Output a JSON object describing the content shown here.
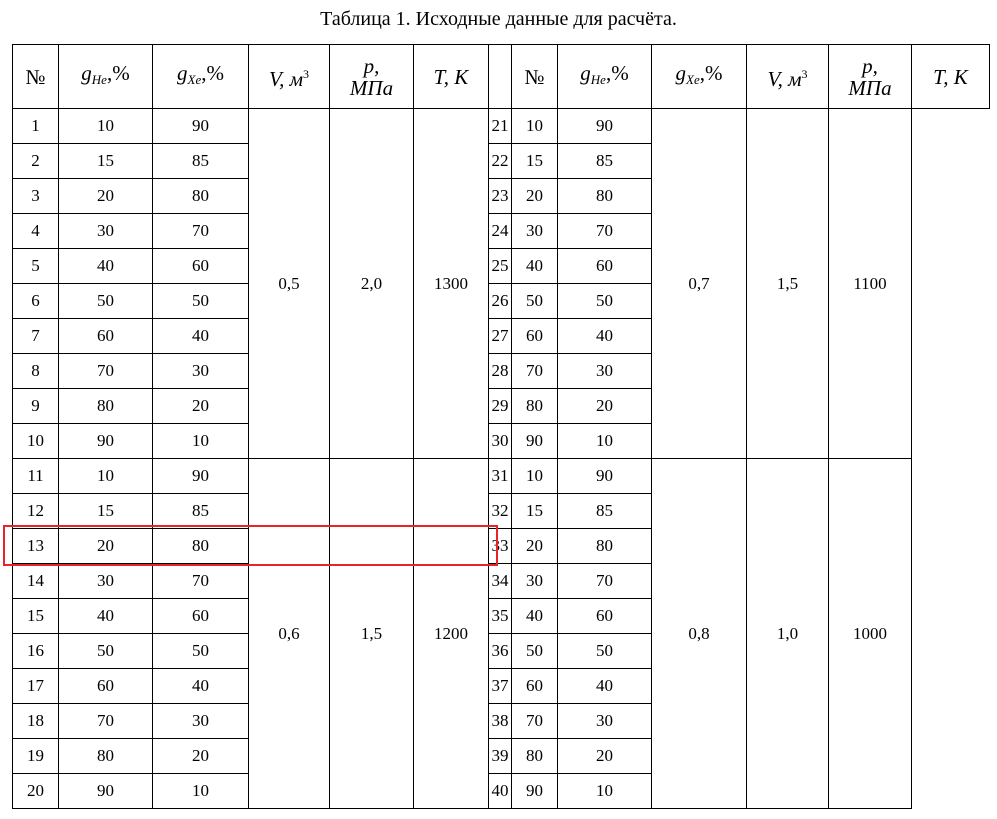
{
  "caption": "Таблица 1. Исходные данные для расчёта.",
  "headers": {
    "num": "№",
    "g_he": {
      "base": "g",
      "sub": "He",
      "unit": ",%"
    },
    "g_xe": {
      "base": "g",
      "sub": "Xe",
      "unit": ",%"
    },
    "volume": {
      "base": "V",
      "unit": ", м",
      "sup": "3"
    },
    "pressure": {
      "line1": "p,",
      "line2": "МПа"
    },
    "temperature": "T, K"
  },
  "groups": [
    {
      "V": "0,5",
      "p": "2,0",
      "T": "1300",
      "rows": [
        [
          1,
          10,
          90
        ],
        [
          2,
          15,
          85
        ],
        [
          3,
          20,
          80
        ],
        [
          4,
          30,
          70
        ],
        [
          5,
          40,
          60
        ],
        [
          6,
          50,
          50
        ],
        [
          7,
          60,
          40
        ],
        [
          8,
          70,
          30
        ],
        [
          9,
          80,
          20
        ],
        [
          10,
          90,
          10
        ]
      ]
    },
    {
      "V": "0,6",
      "p": "1,5",
      "T": "1200",
      "rows": [
        [
          11,
          10,
          90
        ],
        [
          12,
          15,
          85
        ],
        [
          13,
          20,
          80
        ],
        [
          14,
          30,
          70
        ],
        [
          15,
          40,
          60
        ],
        [
          16,
          50,
          50
        ],
        [
          17,
          60,
          40
        ],
        [
          18,
          70,
          30
        ],
        [
          19,
          80,
          20
        ],
        [
          20,
          90,
          10
        ]
      ]
    },
    {
      "V": "0,7",
      "p": "1,5",
      "T": "1100",
      "rows": [
        [
          21,
          10,
          90
        ],
        [
          22,
          15,
          85
        ],
        [
          23,
          20,
          80
        ],
        [
          24,
          30,
          70
        ],
        [
          25,
          40,
          60
        ],
        [
          26,
          50,
          50
        ],
        [
          27,
          60,
          40
        ],
        [
          28,
          70,
          30
        ],
        [
          29,
          80,
          20
        ],
        [
          30,
          90,
          10
        ]
      ]
    },
    {
      "V": "0,8",
      "p": "1,0",
      "T": "1000",
      "rows": [
        [
          31,
          10,
          90
        ],
        [
          32,
          15,
          85
        ],
        [
          33,
          20,
          80
        ],
        [
          34,
          30,
          70
        ],
        [
          35,
          40,
          60
        ],
        [
          36,
          50,
          50
        ],
        [
          37,
          60,
          40
        ],
        [
          38,
          70,
          30
        ],
        [
          39,
          80,
          20
        ],
        [
          40,
          90,
          10
        ]
      ]
    }
  ],
  "highlighted_row": 13,
  "highlight_color": "#e8232a"
}
